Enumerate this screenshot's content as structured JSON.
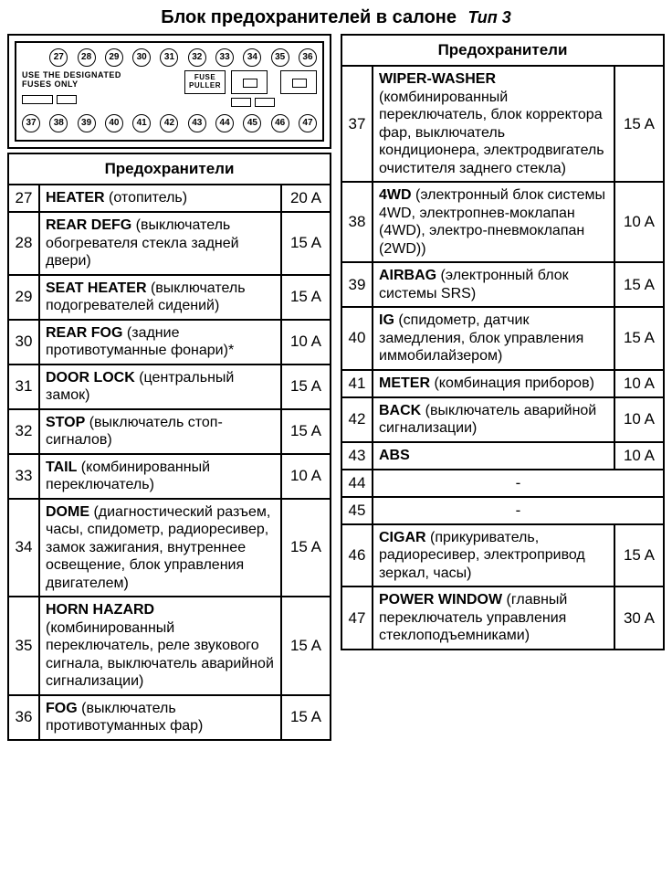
{
  "title": "Блок предохранителей в салоне",
  "subtitle": "Тип 3",
  "header_label": "Предохранители",
  "diagram": {
    "label_line1": "USE THE DESIGNATED",
    "label_line2": "FUSES ONLY",
    "puller_l1": "FUSE",
    "puller_l2": "PULLER",
    "top_row": [
      "27",
      "28",
      "29",
      "30",
      "31",
      "32",
      "33",
      "34",
      "35",
      "36"
    ],
    "bottom_row": [
      "37",
      "38",
      "39",
      "40",
      "41",
      "42",
      "43",
      "44",
      "45",
      "46",
      "47"
    ]
  },
  "left_rows": [
    {
      "n": "27",
      "name": "HEATER",
      "rest": " (отопитель)",
      "a": "20 A"
    },
    {
      "n": "28",
      "name": "REAR DEFG",
      "rest": " (выключатель обогревателя стекла задней двери)",
      "a": "15 A"
    },
    {
      "n": "29",
      "name": "SEAT HEATER",
      "rest": " (выключатель подогревателей сидений)",
      "a": "15 A"
    },
    {
      "n": "30",
      "name": "REAR FOG",
      "rest": " (задние противотуманные фонари)*",
      "a": "10 A"
    },
    {
      "n": "31",
      "name": "DOOR LOCK",
      "rest": " (центральный замок)",
      "a": "15 A"
    },
    {
      "n": "32",
      "name": "STOP",
      "rest": " (выключатель стоп-сигналов)",
      "a": "15 A"
    },
    {
      "n": "33",
      "name": "TAIL",
      "rest": " (комбинированный переключатель)",
      "a": "10 A"
    },
    {
      "n": "34",
      "name": "DOME",
      "rest": " (диагностический разъем, часы, спидометр, радиоресивер, замок зажигания, внутреннее освещение, блок управления двигателем)",
      "a": "15 A"
    },
    {
      "n": "35",
      "name": "HORN HAZARD",
      "rest": " (комбинированный переключатель, реле звукового сигнала, выключатель аварийной сигнализации)",
      "a": "15 A"
    },
    {
      "n": "36",
      "name": "FOG",
      "rest": " (выключатель противотуманных фар)",
      "a": "15 A"
    }
  ],
  "right_rows": [
    {
      "n": "37",
      "name": "WIPER-WASHER",
      "rest": " (комбинированный переключатель, блок корректора фар, выключатель кондиционера, электродвигатель очистителя заднего стекла)",
      "a": "15 A"
    },
    {
      "n": "38",
      "name": "4WD",
      "rest": " (электронный блок системы 4WD, электропнев-моклапан (4WD), электро-пневмоклапан (2WD))",
      "a": "10 A"
    },
    {
      "n": "39",
      "name": "AIRBAG",
      "rest": " (электронный блок системы SRS)",
      "a": "15 A"
    },
    {
      "n": "40",
      "name": "IG",
      "rest": " (спидометр, датчик замедления, блок управления иммобилайзером)",
      "a": "15 A"
    },
    {
      "n": "41",
      "name": "METER",
      "rest": " (комбинация приборов)",
      "a": "10 A"
    },
    {
      "n": "42",
      "name": "BACK",
      "rest": " (выключатель аварийной сигнализации)",
      "a": "10 A"
    },
    {
      "n": "43",
      "name": "ABS",
      "rest": "",
      "a": "10 A"
    },
    {
      "n": "44",
      "dash": "-",
      "a": ""
    },
    {
      "n": "45",
      "dash": "-",
      "a": ""
    },
    {
      "n": "46",
      "name": "CIGAR",
      "rest": " (прикуриватель, радиоресивер, электропривод зеркал, часы)",
      "a": "15 A"
    },
    {
      "n": "47",
      "name": "POWER WINDOW",
      "rest": " (главный переключатель управления стеклоподъемниками)",
      "a": "30 A"
    }
  ],
  "colors": {
    "border": "#000000",
    "bg": "#ffffff",
    "text": "#000000"
  }
}
